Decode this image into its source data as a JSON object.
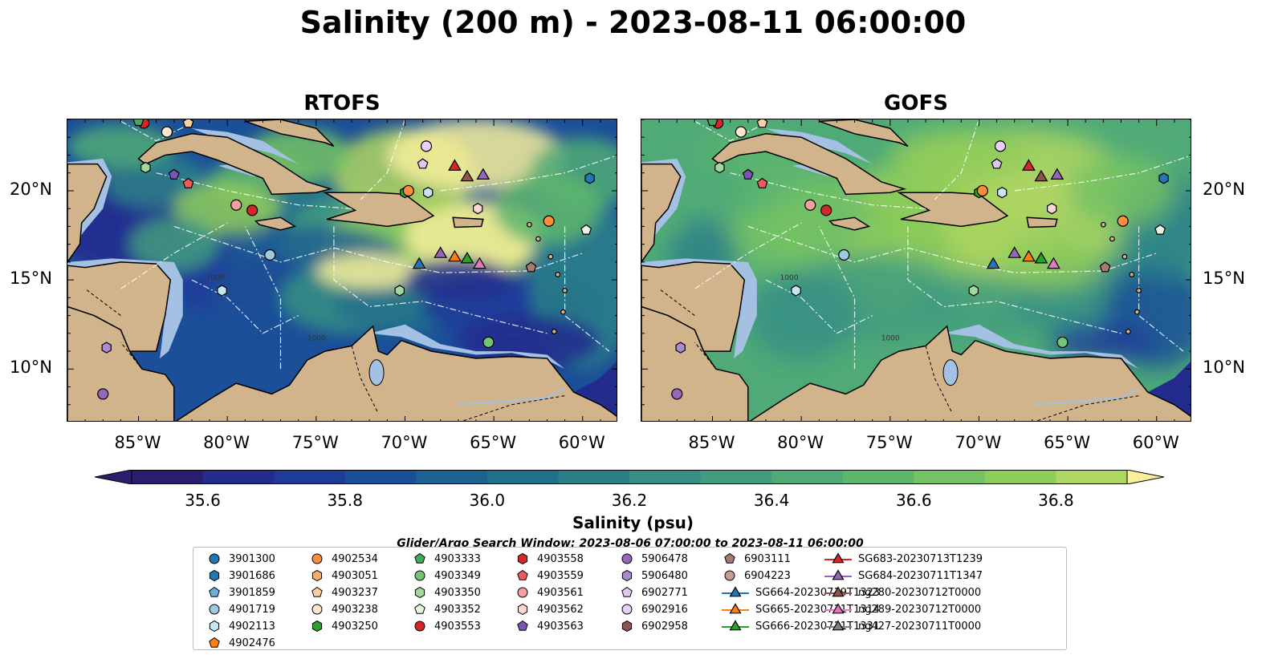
{
  "title": "Salinity (200 m) - 2023-08-11 06:00:00",
  "panels": [
    {
      "id": "rtofs",
      "title": "RTOFS"
    },
    {
      "id": "gofs",
      "title": "GOFS"
    }
  ],
  "axes": {
    "lon_ticks": [
      "85°W",
      "80°W",
      "75°W",
      "70°W",
      "65°W",
      "60°W"
    ],
    "lat_ticks": [
      "20°N",
      "15°N",
      "10°N"
    ],
    "lon_range": [
      -89,
      -58
    ],
    "lat_range": [
      7,
      24
    ]
  },
  "contour_labels": [
    "1000",
    "1000"
  ],
  "colorbar": {
    "label": "Salinity (psu)",
    "ticks": [
      "35.6",
      "35.8",
      "36.0",
      "36.2",
      "36.4",
      "36.6",
      "36.8"
    ],
    "range": [
      35.5,
      36.9
    ],
    "colors": [
      "#2b1d6e",
      "#232b8e",
      "#1f3b9a",
      "#1b4f98",
      "#1d6191",
      "#22718c",
      "#2b8088",
      "#368f84",
      "#429c7f",
      "#4faa77",
      "#5eb66d",
      "#74c264",
      "#8fcd5a",
      "#b0d662",
      "#f7ef9a"
    ]
  },
  "search_window": "Glider/Argo Search Window: 2023-08-06 07:00:00 to 2023-08-11 06:00:00",
  "legend": [
    {
      "label": "3901300",
      "marker": "circle",
      "color": "#1f77b4"
    },
    {
      "label": "3901686",
      "marker": "hexagon",
      "color": "#1f77b4"
    },
    {
      "label": "3901859",
      "marker": "pentagon",
      "color": "#6baed6"
    },
    {
      "label": "4901719",
      "marker": "circle",
      "color": "#9ecae1"
    },
    {
      "label": "4902113",
      "marker": "hexagon",
      "color": "#c6e6f5"
    },
    {
      "label": "4902476",
      "marker": "pentagon",
      "color": "#ff7f0e"
    },
    {
      "label": "4902534",
      "marker": "circle",
      "color": "#fd8d3c"
    },
    {
      "label": "4903051",
      "marker": "hexagon",
      "color": "#fdae6b"
    },
    {
      "label": "4903237",
      "marker": "pentagon",
      "color": "#fdd0a2"
    },
    {
      "label": "4903238",
      "marker": "circle",
      "color": "#fee6ce"
    },
    {
      "label": "4903250",
      "marker": "hexagon",
      "color": "#2ca02c"
    },
    {
      "label": "4903333",
      "marker": "pentagon",
      "color": "#41ab5d"
    },
    {
      "label": "4903349",
      "marker": "circle",
      "color": "#74c476"
    },
    {
      "label": "4903350",
      "marker": "hexagon",
      "color": "#a1d99b"
    },
    {
      "label": "4903352",
      "marker": "pentagon",
      "color": "#e5f5e0"
    },
    {
      "label": "4903553",
      "marker": "circle",
      "color": "#d62728"
    },
    {
      "label": "4903558",
      "marker": "hexagon",
      "color": "#d62728"
    },
    {
      "label": "4903559",
      "marker": "pentagon",
      "color": "#ef5a5a"
    },
    {
      "label": "4903561",
      "marker": "circle",
      "color": "#f4a0a0"
    },
    {
      "label": "4903562",
      "marker": "hexagon",
      "color": "#fcd5d5"
    },
    {
      "label": "4903563",
      "marker": "pentagon",
      "color": "#7b52b5"
    },
    {
      "label": "5906478",
      "marker": "circle",
      "color": "#9467bd"
    },
    {
      "label": "5906480",
      "marker": "hexagon",
      "color": "#a98bd3"
    },
    {
      "label": "6902771",
      "marker": "pentagon",
      "color": "#dcc8f0"
    },
    {
      "label": "6902916",
      "marker": "circle",
      "color": "#e8d0f8"
    },
    {
      "label": "6902958",
      "marker": "hexagon",
      "color": "#8c564b"
    },
    {
      "label": "6903111",
      "marker": "pentagon",
      "color": "#a77b6e"
    },
    {
      "label": "6904223",
      "marker": "circle",
      "color": "#c49c94"
    },
    {
      "label": "SG664-20230719T1323",
      "marker": "triangle-line",
      "color": "#1f77b4"
    },
    {
      "label": "SG665-20230711T1314",
      "marker": "triangle-line",
      "color": "#ff7f0e"
    },
    {
      "label": "SG666-20230711T1331",
      "marker": "triangle-line",
      "color": "#2ca02c"
    },
    {
      "label": "SG683-20230713T1239",
      "marker": "triangle-line",
      "color": "#d62728"
    },
    {
      "label": "SG684-20230711T1347",
      "marker": "triangle-line",
      "color": "#9467bd"
    },
    {
      "label": "ng280-20230712T0000",
      "marker": "triangle-line",
      "color": "#8c564b"
    },
    {
      "label": "ng289-20230712T0000",
      "marker": "triangle-line",
      "color": "#e377c2"
    },
    {
      "label": "ng427-20230711T0000",
      "marker": "triangle-line",
      "color": "#7f7f7f"
    }
  ],
  "colors": {
    "land": "#d2b48c",
    "shallow": "#a4c0e3",
    "deep_pacific": "#2b1d6e"
  }
}
